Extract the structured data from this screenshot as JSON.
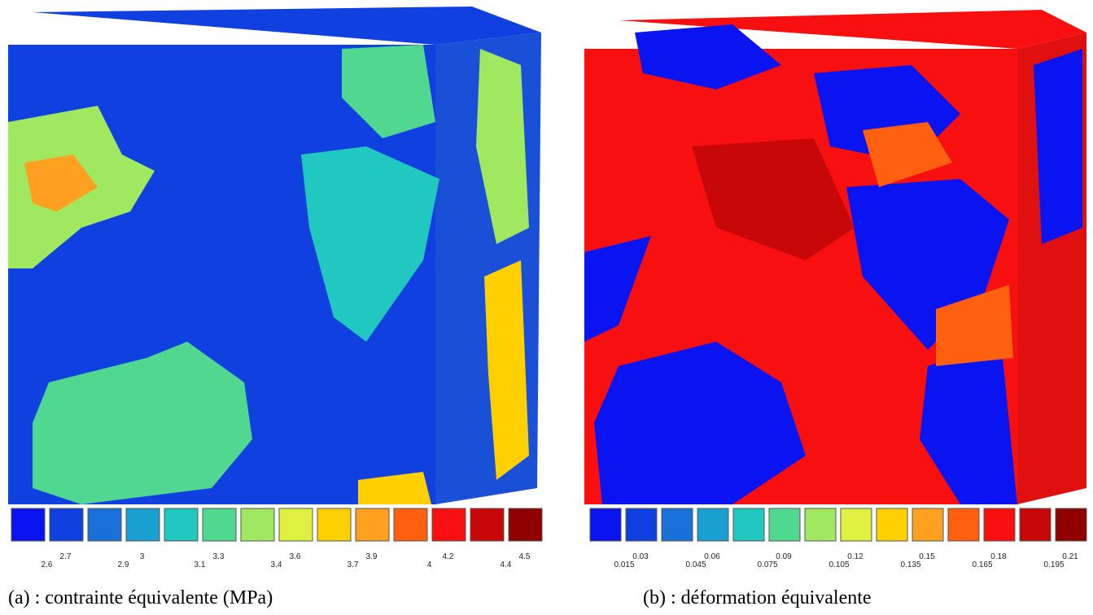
{
  "panels": [
    {
      "caption": "(a) : contrainte équivalente (MPa)",
      "legend": {
        "colors": [
          "#0a14f0",
          "#1040e0",
          "#1a70d8",
          "#1aa0d0",
          "#20c8c0",
          "#50d890",
          "#a0e860",
          "#e0f040",
          "#ffd000",
          "#ffa020",
          "#ff6010",
          "#f81010",
          "#c80808",
          "#900000"
        ],
        "labels": [
          2.6,
          2.7,
          2.9,
          3,
          3.1,
          3.3,
          3.4,
          3.6,
          3.7,
          3.9,
          4,
          4.2,
          4.4,
          4.5
        ]
      }
    },
    {
      "caption": "(b) : déformation équivalente",
      "legend": {
        "colors": [
          "#0a14f0",
          "#1040e0",
          "#1a70d8",
          "#1aa0d0",
          "#20c8c0",
          "#50d890",
          "#a0e860",
          "#e0f040",
          "#ffd000",
          "#ffa020",
          "#ff6010",
          "#f81010",
          "#c80808",
          "#900000"
        ],
        "labels": [
          0.015,
          0.03,
          0.045,
          0.06,
          0.075,
          0.09,
          0.105,
          0.12,
          0.135,
          0.15,
          0.165,
          0.18,
          0.195,
          0.21
        ]
      }
    }
  ]
}
